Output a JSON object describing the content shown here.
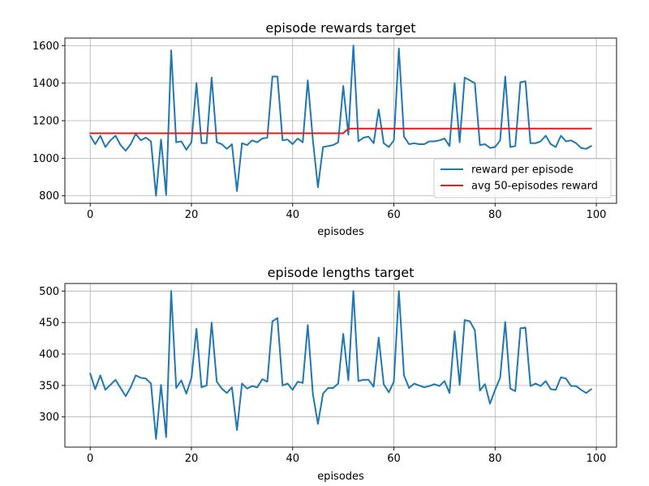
{
  "chart_data": [
    {
      "type": "line",
      "title": "episode rewards target",
      "xlabel": "episodes",
      "ylabel": "",
      "xlim": [
        -5,
        104
      ],
      "ylim": [
        760,
        1640
      ],
      "xticks": [
        0,
        20,
        40,
        60,
        80,
        100
      ],
      "yticks": [
        800,
        1000,
        1200,
        1400,
        1600
      ],
      "grid": true,
      "legend_position": "lower-right",
      "series": [
        {
          "name": "reward per episode",
          "color": "#1f77b4",
          "x": [
            0,
            1,
            2,
            3,
            4,
            5,
            6,
            7,
            8,
            9,
            10,
            11,
            12,
            13,
            14,
            15,
            16,
            17,
            18,
            19,
            20,
            21,
            22,
            23,
            24,
            25,
            26,
            27,
            28,
            29,
            30,
            31,
            32,
            33,
            34,
            35,
            36,
            37,
            38,
            39,
            40,
            41,
            42,
            43,
            44,
            45,
            46,
            47,
            48,
            49,
            50,
            51,
            52,
            53,
            54,
            55,
            56,
            57,
            58,
            59,
            60,
            61,
            62,
            63,
            64,
            65,
            66,
            67,
            68,
            69,
            70,
            71,
            72,
            73,
            74,
            75,
            76,
            77,
            78,
            79,
            80,
            81,
            82,
            83,
            84,
            85,
            86,
            87,
            88,
            89,
            90,
            91,
            92,
            93,
            94,
            95,
            96,
            97,
            98,
            99
          ],
          "values": [
            1120,
            1075,
            1120,
            1060,
            1095,
            1120,
            1070,
            1040,
            1075,
            1130,
            1095,
            1110,
            1090,
            800,
            1100,
            805,
            1575,
            1085,
            1090,
            1045,
            1085,
            1400,
            1080,
            1080,
            1430,
            1085,
            1075,
            1050,
            1075,
            825,
            1080,
            1070,
            1095,
            1085,
            1105,
            1110,
            1435,
            1435,
            1095,
            1100,
            1075,
            1105,
            1085,
            1415,
            1095,
            845,
            1060,
            1065,
            1070,
            1085,
            1385,
            1125,
            1600,
            1090,
            1110,
            1115,
            1080,
            1260,
            1080,
            1060,
            1095,
            1585,
            1115,
            1075,
            1080,
            1075,
            1075,
            1090,
            1090,
            1095,
            1105,
            1065,
            1400,
            1085,
            1430,
            1415,
            1400,
            1070,
            1075,
            1055,
            1060,
            1095,
            1435,
            1060,
            1065,
            1405,
            1410,
            1080,
            1080,
            1090,
            1120,
            1075,
            1060,
            1120,
            1090,
            1095,
            1080,
            1055,
            1050,
            1065
          ]
        },
        {
          "name": "avg 50-episodes reward",
          "color": "#e8171f",
          "x": [
            0,
            50,
            51,
            99
          ],
          "values": [
            1133,
            1133,
            1158,
            1158
          ]
        }
      ]
    },
    {
      "type": "line",
      "title": "episode lengths target",
      "xlabel": "episodes",
      "ylabel": "",
      "xlim": [
        -5,
        104
      ],
      "ylim": [
        252,
        512
      ],
      "xticks": [
        0,
        20,
        40,
        60,
        80,
        100
      ],
      "yticks": [
        300,
        350,
        400,
        450,
        500
      ],
      "grid": true,
      "series": [
        {
          "name": "",
          "color": "#1f77b4",
          "x": [
            0,
            1,
            2,
            3,
            4,
            5,
            6,
            7,
            8,
            9,
            10,
            11,
            12,
            13,
            14,
            15,
            16,
            17,
            18,
            19,
            20,
            21,
            22,
            23,
            24,
            25,
            26,
            27,
            28,
            29,
            30,
            31,
            32,
            33,
            34,
            35,
            36,
            37,
            38,
            39,
            40,
            41,
            42,
            43,
            44,
            45,
            46,
            47,
            48,
            49,
            50,
            51,
            52,
            53,
            54,
            55,
            56,
            57,
            58,
            59,
            60,
            61,
            62,
            63,
            64,
            65,
            66,
            67,
            68,
            69,
            70,
            71,
            72,
            73,
            74,
            75,
            76,
            77,
            78,
            79,
            80,
            81,
            82,
            83,
            84,
            85,
            86,
            87,
            88,
            89,
            90,
            91,
            92,
            93,
            94,
            95,
            96,
            97,
            98,
            99
          ],
          "values": [
            369,
            344,
            366,
            343,
            351,
            359,
            346,
            333,
            347,
            366,
            362,
            361,
            353,
            265,
            351,
            268,
            500,
            346,
            358,
            337,
            362,
            440,
            347,
            350,
            450,
            356,
            345,
            338,
            347,
            279,
            353,
            345,
            349,
            347,
            360,
            356,
            452,
            457,
            350,
            353,
            343,
            356,
            354,
            446,
            336,
            289,
            337,
            346,
            346,
            353,
            432,
            358,
            500,
            357,
            359,
            359,
            348,
            426,
            352,
            339,
            356,
            500,
            366,
            346,
            353,
            350,
            347,
            349,
            352,
            349,
            357,
            338,
            436,
            351,
            454,
            452,
            438,
            342,
            352,
            321,
            343,
            362,
            451,
            345,
            341,
            441,
            442,
            349,
            353,
            349,
            357,
            344,
            343,
            363,
            361,
            349,
            349,
            343,
            338,
            344
          ]
        }
      ]
    }
  ]
}
